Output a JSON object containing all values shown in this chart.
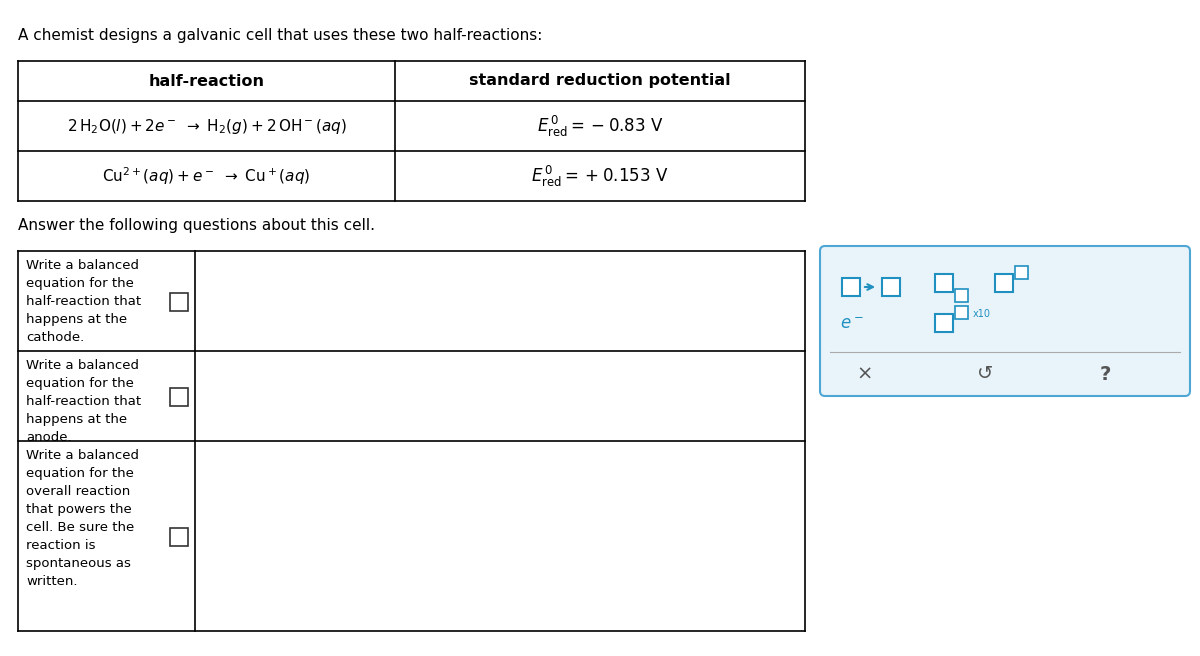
{
  "title": "A chemist designs a galvanic cell that uses these two half-reactions:",
  "answer_text": "Answer the following questions about this cell.",
  "table_headers": [
    "half-reaction",
    "standard reduction potential"
  ],
  "row1_reaction": "2 H₂O(ℓ)+2e⁻  →  H₂(g)+2 OH⁻ (aq)",
  "row1_potential": "E°ₐₑₐ = −0.83 V",
  "row2_reaction": "Cu²⁺(aq)+e⁻  →  Cu⁺(aq)",
  "row2_potential": "E°ₐₑₐ = +0.153 V",
  "q1": "Write a balanced\nequation for the\nhalf-reaction that\nhappens at the\ncathode.",
  "q2": "Write a balanced\nequation for the\nhalf-reaction that\nhappens at the\nanode.",
  "q3": "Write a balanced\nequation for the\noverall reaction\nthat powers the\ncell. Be sure the\nreaction is\nspontaneous as\nwritten.",
  "bg_color": "#ffffff",
  "table_border_color": "#000000",
  "text_color": "#000000",
  "answer_box_border": "#4da6d4",
  "toolbar_bg": "#e8f4fa"
}
